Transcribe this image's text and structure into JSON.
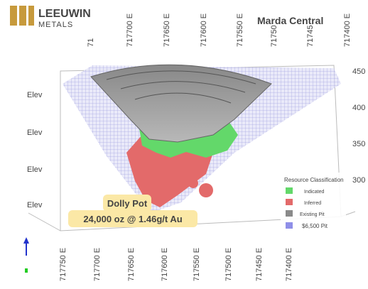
{
  "logo": {
    "name": "LEEUWIN",
    "sub": "METALS"
  },
  "title": "Marda Central",
  "top_labels": [
    "71",
    "717700 E",
    "717650 E",
    "717600 E",
    "717550 E",
    "71750",
    "71745",
    "717400 E"
  ],
  "right_labels": [
    "450",
    "400",
    "350",
    "300"
  ],
  "left_labels": [
    "Elev",
    "Elev",
    "Elev",
    "Elev"
  ],
  "bottom_labels": [
    "717750 E",
    "717700 E",
    "717650 E",
    "717600 E",
    "717550 E",
    "717500 E",
    "717450 E",
    "717400 E"
  ],
  "callout": {
    "name": "Dolly Pot",
    "detail": "24,000 oz @ 1.46g/t Au"
  },
  "legend": {
    "title": "Resource Classification",
    "items": [
      "Indicated",
      "Inferred",
      "Existing Pit",
      "$6,500 Pit"
    ]
  }
}
